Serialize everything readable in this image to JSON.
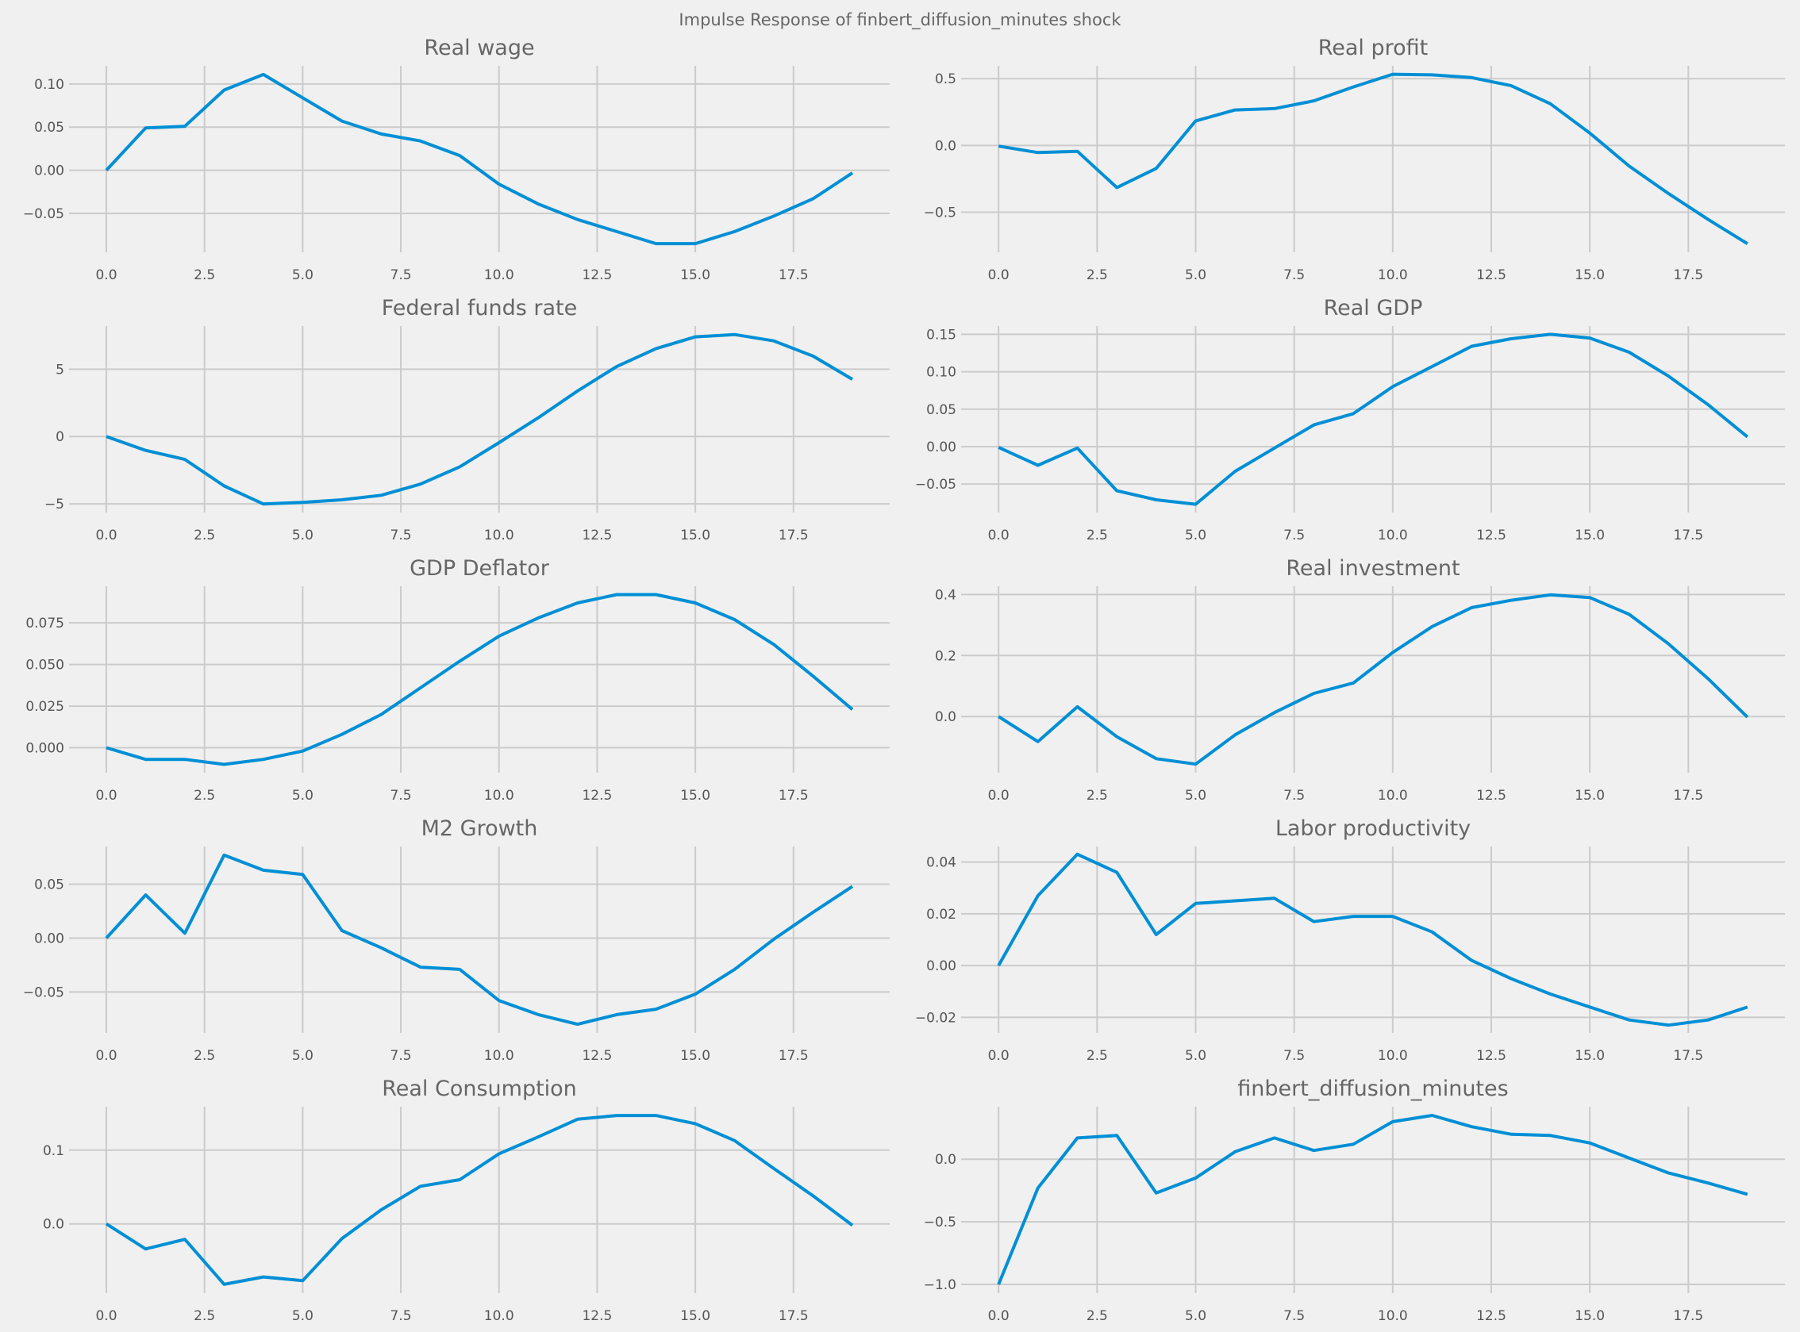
{
  "suptitle": "Impulse Response of finbert_diffusion_minutes shock",
  "line_color": "#008fd5",
  "background": "#f0f0f0",
  "grid_color": "#cbcbcb",
  "chart_data": [
    {
      "type": "line",
      "title": "Real wage",
      "x": [
        0,
        1,
        2,
        3,
        4,
        5,
        6,
        7,
        8,
        9,
        10,
        11,
        12,
        13,
        14,
        15,
        16,
        17,
        18,
        19
      ],
      "values": [
        0,
        0.049,
        0.051,
        0.093,
        0.111,
        0.084,
        0.057,
        0.042,
        0.034,
        0.017,
        -0.016,
        -0.039,
        -0.057,
        -0.071,
        -0.085,
        -0.085,
        -0.071,
        -0.053,
        -0.033,
        -0.003
      ],
      "ylim": [
        -0.095,
        0.121
      ],
      "yticks": [
        0.1,
        0.05,
        0.0,
        -0.05
      ],
      "ytick_labels": [
        "0.10",
        "0.05",
        "0.00",
        "−0.05"
      ],
      "xticks": [
        0,
        2.5,
        5,
        7.5,
        10,
        12.5,
        15,
        17.5
      ],
      "xtick_labels": [
        "0.0",
        "2.5",
        "5.0",
        "7.5",
        "10.0",
        "12.5",
        "15.0",
        "17.5"
      ],
      "xlim": [
        -0.95,
        19.95
      ],
      "grid": true
    },
    {
      "type": "line",
      "title": "Real profit",
      "x": [
        0,
        1,
        2,
        3,
        4,
        5,
        6,
        7,
        8,
        9,
        10,
        11,
        12,
        13,
        14,
        15,
        16,
        17,
        18,
        19
      ],
      "values": [
        -0.005,
        -0.053,
        -0.044,
        -0.315,
        -0.172,
        0.184,
        0.266,
        0.276,
        0.334,
        0.438,
        0.533,
        0.528,
        0.508,
        0.448,
        0.312,
        0.092,
        -0.155,
        -0.361,
        -0.554,
        -0.736
      ],
      "ylim": [
        -0.8,
        0.596
      ],
      "yticks": [
        0.5,
        0.0,
        -0.5
      ],
      "ytick_labels": [
        "0.5",
        "0.0",
        "−0.5"
      ],
      "xticks": [
        0,
        2.5,
        5,
        7.5,
        10,
        12.5,
        15,
        17.5
      ],
      "xtick_labels": [
        "0.0",
        "2.5",
        "5.0",
        "7.5",
        "10.0",
        "12.5",
        "15.0",
        "17.5"
      ],
      "xlim": [
        -0.95,
        19.95
      ],
      "grid": true
    },
    {
      "type": "line",
      "title": "Federal funds rate",
      "x": [
        0,
        1,
        2,
        3,
        4,
        5,
        6,
        7,
        8,
        9,
        10,
        11,
        12,
        13,
        14,
        15,
        16,
        17,
        18,
        19
      ],
      "values": [
        0,
        -1.03,
        -1.7,
        -3.67,
        -5.01,
        -4.89,
        -4.7,
        -4.36,
        -3.53,
        -2.25,
        -0.46,
        1.39,
        3.38,
        5.2,
        6.53,
        7.4,
        7.57,
        7.1,
        5.97,
        4.25
      ],
      "ylim": [
        -5.64,
        8.2
      ],
      "yticks": [
        5,
        0,
        -5
      ],
      "ytick_labels": [
        "5",
        "0",
        "−5"
      ],
      "xticks": [
        0,
        2.5,
        5,
        7.5,
        10,
        12.5,
        15,
        17.5
      ],
      "xtick_labels": [
        "0.0",
        "2.5",
        "5.0",
        "7.5",
        "10.0",
        "12.5",
        "15.0",
        "17.5"
      ],
      "xlim": [
        -0.95,
        19.95
      ],
      "grid": true
    },
    {
      "type": "line",
      "title": "Real GDP",
      "x": [
        0,
        1,
        2,
        3,
        4,
        5,
        6,
        7,
        8,
        9,
        10,
        11,
        12,
        13,
        14,
        15,
        16,
        17,
        18,
        19
      ],
      "values": [
        -0.001,
        -0.025,
        -0.002,
        -0.059,
        -0.071,
        -0.077,
        -0.033,
        -0.002,
        0.029,
        0.044,
        0.08,
        0.107,
        0.134,
        0.144,
        0.15,
        0.145,
        0.126,
        0.094,
        0.056,
        0.013
      ],
      "ylim": [
        -0.088,
        0.161
      ],
      "yticks": [
        0.15,
        0.1,
        0.05,
        0.0,
        -0.05
      ],
      "ytick_labels": [
        "0.15",
        "0.10",
        "0.05",
        "0.00",
        "−0.05"
      ],
      "xticks": [
        0,
        2.5,
        5,
        7.5,
        10,
        12.5,
        15,
        17.5
      ],
      "xtick_labels": [
        "0.0",
        "2.5",
        "5.0",
        "7.5",
        "10.0",
        "12.5",
        "15.0",
        "17.5"
      ],
      "xlim": [
        -0.95,
        19.95
      ],
      "grid": true
    },
    {
      "type": "line",
      "title": "GDP Deflator",
      "x": [
        0,
        1,
        2,
        3,
        4,
        5,
        6,
        7,
        8,
        9,
        10,
        11,
        12,
        13,
        14,
        15,
        16,
        17,
        18,
        19
      ],
      "values": [
        0,
        -0.007,
        -0.007,
        -0.01,
        -0.007,
        -0.002,
        0.008,
        0.02,
        0.036,
        0.052,
        0.067,
        0.078,
        0.087,
        0.092,
        0.092,
        0.087,
        0.077,
        0.062,
        0.043,
        0.023
      ],
      "ylim": [
        -0.015,
        0.097
      ],
      "yticks": [
        0.075,
        0.05,
        0.025,
        0.0
      ],
      "ytick_labels": [
        "0.075",
        "0.050",
        "0.025",
        "0.000"
      ],
      "xticks": [
        0,
        2.5,
        5,
        7.5,
        10,
        12.5,
        15,
        17.5
      ],
      "xtick_labels": [
        "0.0",
        "2.5",
        "5.0",
        "7.5",
        "10.0",
        "12.5",
        "15.0",
        "17.5"
      ],
      "xlim": [
        -0.95,
        19.95
      ],
      "grid": true
    },
    {
      "type": "line",
      "title": "Real investment",
      "x": [
        0,
        1,
        2,
        3,
        4,
        5,
        6,
        7,
        8,
        9,
        10,
        11,
        12,
        13,
        14,
        15,
        16,
        17,
        18,
        19
      ],
      "values": [
        0,
        -0.082,
        0.032,
        -0.066,
        -0.138,
        -0.156,
        -0.06,
        0.013,
        0.076,
        0.11,
        0.21,
        0.295,
        0.357,
        0.381,
        0.399,
        0.39,
        0.335,
        0.238,
        0.124,
        -0.002
      ],
      "ylim": [
        -0.184,
        0.427
      ],
      "yticks": [
        0.4,
        0.2,
        0.0
      ],
      "ytick_labels": [
        "0.4",
        "0.2",
        "0.0"
      ],
      "xticks": [
        0,
        2.5,
        5,
        7.5,
        10,
        12.5,
        15,
        17.5
      ],
      "xtick_labels": [
        "0.0",
        "2.5",
        "5.0",
        "7.5",
        "10.0",
        "12.5",
        "15.0",
        "17.5"
      ],
      "xlim": [
        -0.95,
        19.95
      ],
      "grid": true
    },
    {
      "type": "line",
      "title": "M2 Growth",
      "x": [
        0,
        1,
        2,
        3,
        4,
        5,
        6,
        7,
        8,
        9,
        10,
        11,
        12,
        13,
        14,
        15,
        16,
        17,
        18,
        19
      ],
      "values": [
        0,
        0.04,
        0.0045,
        0.077,
        0.063,
        0.059,
        0.007,
        -0.009,
        -0.027,
        -0.029,
        -0.058,
        -0.071,
        -0.08,
        -0.071,
        -0.066,
        -0.052,
        -0.029,
        -0.001,
        0.024,
        0.048
      ],
      "ylim": [
        -0.088,
        0.085
      ],
      "yticks": [
        0.05,
        0.0,
        -0.05
      ],
      "ytick_labels": [
        "0.05",
        "0.00",
        "−0.05"
      ],
      "xticks": [
        0,
        2.5,
        5,
        7.5,
        10,
        12.5,
        15,
        17.5
      ],
      "xtick_labels": [
        "0.0",
        "2.5",
        "5.0",
        "7.5",
        "10.0",
        "12.5",
        "15.0",
        "17.5"
      ],
      "xlim": [
        -0.95,
        19.95
      ],
      "grid": true
    },
    {
      "type": "line",
      "title": "Labor productivity",
      "x": [
        0,
        1,
        2,
        3,
        4,
        5,
        6,
        7,
        8,
        9,
        10,
        11,
        12,
        13,
        14,
        15,
        16,
        17,
        18,
        19
      ],
      "values": [
        0,
        0.027,
        0.043,
        0.036,
        0.012,
        0.024,
        0.025,
        0.026,
        0.017,
        0.019,
        0.019,
        0.013,
        0.002,
        -0.005,
        -0.011,
        -0.016,
        -0.021,
        -0.023,
        -0.021,
        -0.016
      ],
      "ylim": [
        -0.026,
        0.046
      ],
      "yticks": [
        0.04,
        0.02,
        0.0,
        -0.02
      ],
      "ytick_labels": [
        "0.04",
        "0.02",
        "0.00",
        "−0.02"
      ],
      "xticks": [
        0,
        2.5,
        5,
        7.5,
        10,
        12.5,
        15,
        17.5
      ],
      "xtick_labels": [
        "0.0",
        "2.5",
        "5.0",
        "7.5",
        "10.0",
        "12.5",
        "15.0",
        "17.5"
      ],
      "xlim": [
        -0.95,
        19.95
      ],
      "grid": true
    },
    {
      "type": "line",
      "title": "Real Consumption",
      "x": [
        0,
        1,
        2,
        3,
        4,
        5,
        6,
        7,
        8,
        9,
        10,
        11,
        12,
        13,
        14,
        15,
        16,
        17,
        18,
        19
      ],
      "values": [
        0,
        -0.034,
        -0.021,
        -0.082,
        -0.072,
        -0.077,
        -0.02,
        0.019,
        0.051,
        0.06,
        0.095,
        0.118,
        0.142,
        0.147,
        0.147,
        0.136,
        0.113,
        0.075,
        0.038,
        -0.002
      ],
      "ylim": [
        -0.094,
        0.159
      ],
      "yticks": [
        0.1,
        0.0
      ],
      "ytick_labels": [
        "0.1",
        "0.0"
      ],
      "xticks": [
        0,
        2.5,
        5,
        7.5,
        10,
        12.5,
        15,
        17.5
      ],
      "xtick_labels": [
        "0.0",
        "2.5",
        "5.0",
        "7.5",
        "10.0",
        "12.5",
        "15.0",
        "17.5"
      ],
      "xlim": [
        -0.95,
        19.95
      ],
      "grid": true
    },
    {
      "type": "line",
      "title": "finbert_diffusion_minutes",
      "x": [
        0,
        1,
        2,
        3,
        4,
        5,
        6,
        7,
        8,
        9,
        10,
        11,
        12,
        13,
        14,
        15,
        16,
        17,
        18,
        19
      ],
      "values": [
        -1.0,
        -0.23,
        0.17,
        0.19,
        -0.27,
        -0.15,
        0.06,
        0.17,
        0.07,
        0.12,
        0.3,
        0.35,
        0.26,
        0.2,
        0.19,
        0.13,
        0.01,
        -0.11,
        -0.19,
        -0.28
      ],
      "ylim": [
        -1.07,
        0.42
      ],
      "yticks": [
        0.0,
        -0.5,
        -1.0
      ],
      "ytick_labels": [
        "0.0",
        "−0.5",
        "−1.0"
      ],
      "xticks": [
        0,
        2.5,
        5,
        7.5,
        10,
        12.5,
        15,
        17.5
      ],
      "xtick_labels": [
        "0.0",
        "2.5",
        "5.0",
        "7.5",
        "10.0",
        "12.5",
        "15.0",
        "17.5"
      ],
      "xlim": [
        -0.95,
        19.95
      ],
      "grid": true
    }
  ]
}
